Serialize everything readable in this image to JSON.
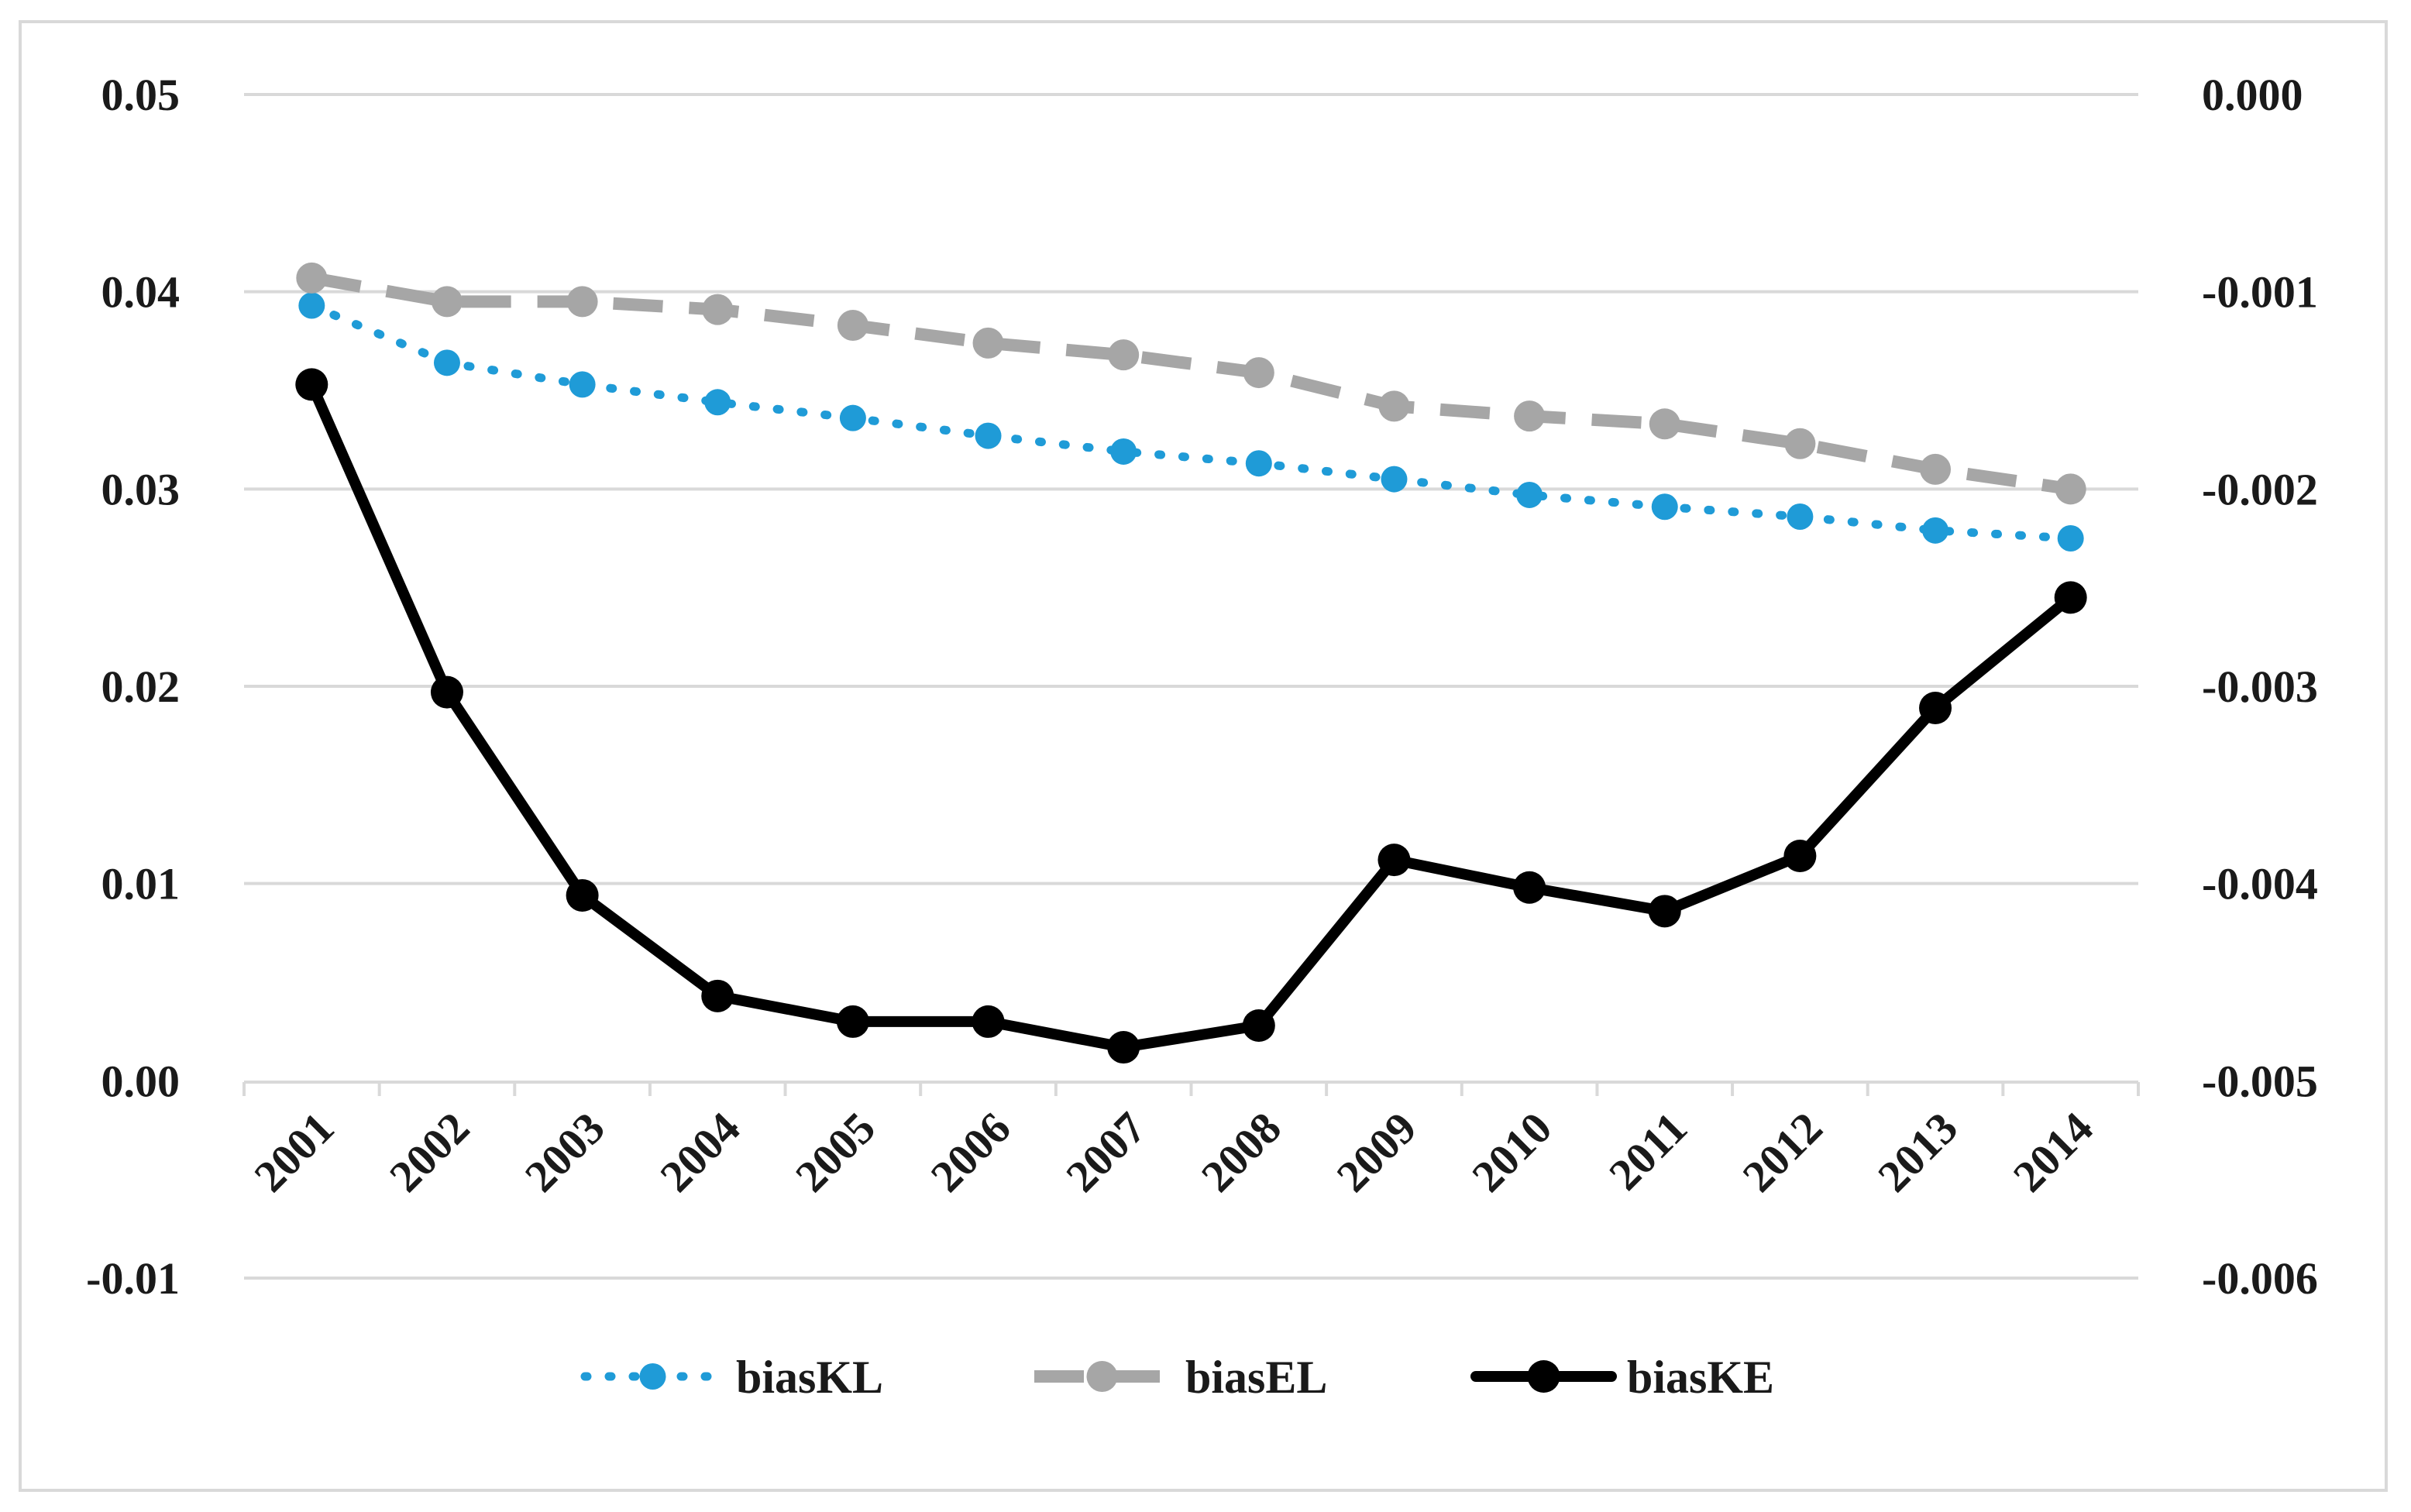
{
  "chart_data": {
    "type": "line",
    "title": "",
    "xlabel": "",
    "ylabel": "",
    "y2label": "",
    "grid": true,
    "legend_position": "bottom",
    "categories": [
      "2001",
      "2002",
      "2003",
      "2004",
      "2005",
      "2006",
      "2007",
      "2008",
      "2009",
      "2010",
      "2011",
      "2012",
      "2013",
      "2014"
    ],
    "left_axis": {
      "ylim": [
        -0.01,
        0.05
      ],
      "ticks": [
        0.05,
        0.04,
        0.03,
        0.02,
        0.01,
        0.0,
        -0.01
      ],
      "tick_labels": [
        "0.05",
        "0.04",
        "0.03",
        "0.02",
        "0.01",
        "0.00",
        "-0.01"
      ]
    },
    "right_axis": {
      "ylim": [
        -0.006,
        0.0
      ],
      "ticks": [
        0.0,
        -0.001,
        -0.002,
        -0.003,
        -0.004,
        -0.005,
        -0.006
      ],
      "tick_labels": [
        "0.000",
        "-0.001",
        "-0.002",
        "-0.003",
        "-0.004",
        "-0.005",
        "-0.006"
      ]
    },
    "series": [
      {
        "name": "biasKL",
        "axis": "left",
        "style": "dotted",
        "color": "#1f9bd7",
        "values": [
          0.0393,
          0.0364,
          0.0353,
          0.0344,
          0.0336,
          0.0327,
          0.0319,
          0.0313,
          0.0305,
          0.0297,
          0.0291,
          0.0286,
          0.0279,
          0.0275
        ]
      },
      {
        "name": "biasEL",
        "axis": "right",
        "style": "dashed",
        "color": "#a6a6a6",
        "values": [
          -0.00093,
          -0.00105,
          -0.00105,
          -0.00109,
          -0.00117,
          -0.00126,
          -0.00132,
          -0.00141,
          -0.00158,
          -0.00163,
          -0.00167,
          -0.00177,
          -0.0019,
          -0.002
        ]
      },
      {
        "name": "biasKE",
        "axis": "right",
        "style": "solid",
        "color": "#000000",
        "values": [
          -0.00147,
          -0.00303,
          -0.00406,
          -0.00457,
          -0.0047,
          -0.0047,
          -0.00483,
          -0.00472,
          -0.00388,
          -0.00402,
          -0.00414,
          -0.00386,
          -0.00311,
          -0.00255
        ]
      }
    ]
  }
}
